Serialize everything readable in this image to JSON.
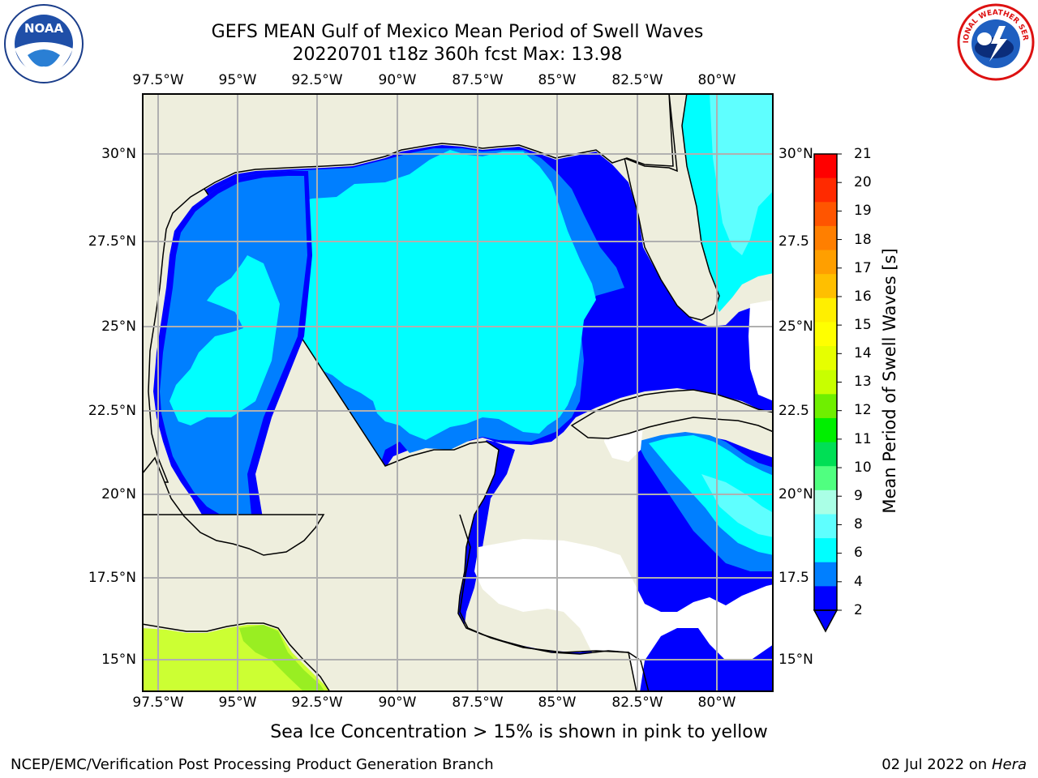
{
  "header": {
    "title_line1": "GEFS MEAN Gulf of Mexico Mean Period of Swell Waves",
    "title_line2": "20220701 t18z 360h fcst   Max: 13.98"
  },
  "logos": {
    "left": {
      "icon": "noaa-logo-icon",
      "text": "NOAA"
    },
    "right": {
      "icon": "national-weather-service-logo-icon",
      "text": "NATIONAL WEATHER SERVICE"
    }
  },
  "axes": {
    "lon_ticks": [
      "97.5°W",
      "95°W",
      "92.5°W",
      "90°W",
      "87.5°W",
      "85°W",
      "82.5°W",
      "80°W"
    ],
    "lat_ticks_left": [
      "30°N",
      "27.5°N",
      "25°N",
      "22.5°N",
      "20°N",
      "17.5°N",
      "15°N"
    ],
    "lat_ticks_right": [
      "30°N",
      "27.5",
      "25°N",
      "22.5",
      "20°N",
      "17.5",
      "15°N"
    ]
  },
  "colorbar": {
    "title": "Mean Period of Swell Waves [s]",
    "labels": [
      "21",
      "20",
      "19",
      "18",
      "17",
      "16",
      "15",
      "14",
      "13",
      "12",
      "11",
      "10",
      "9",
      "8",
      "6",
      "4",
      "2"
    ],
    "colors": [
      "#ff0000",
      "#ff2a00",
      "#ff5500",
      "#ff7f00",
      "#ff9f00",
      "#ffbf00",
      "#ffef00",
      "#ffff00",
      "#e6ff00",
      "#c8ff00",
      "#6fef00",
      "#00ef00",
      "#00df55",
      "#50ff80",
      "#aaffe6",
      "#5fffff",
      "#00ffff",
      "#007fff",
      "#0000ff"
    ]
  },
  "map": {
    "land_color": "#eeeedd",
    "nodata_color": "#ffffff",
    "level_colors": {
      "below_2": "#0000ff",
      "2_4": "#007fff",
      "4_6": "#00ffff",
      "6_8": "#5fffff",
      "high": "#ccff33"
    }
  },
  "note": "Sea Ice Concentration > 15% is shown in pink to yellow",
  "footer": {
    "left": "NCEP/EMC/Verification Post Processing Product Generation Branch",
    "date": "02 Jul 2022 on ",
    "host": "Hera"
  }
}
